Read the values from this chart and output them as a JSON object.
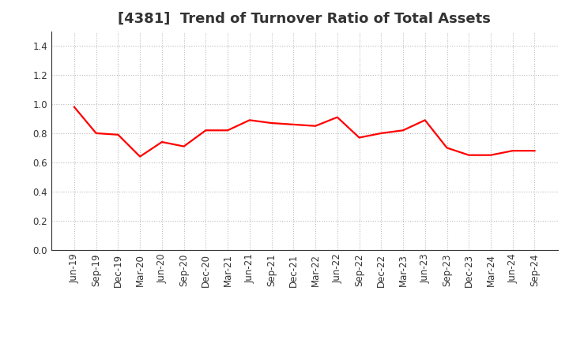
{
  "title": "[4381]  Trend of Turnover Ratio of Total Assets",
  "line_color": "#FF0000",
  "background_color": "#FFFFFF",
  "grid_color": "#BBBBBB",
  "labels": [
    "Jun-19",
    "Sep-19",
    "Dec-19",
    "Mar-20",
    "Jun-20",
    "Sep-20",
    "Dec-20",
    "Mar-21",
    "Jun-21",
    "Sep-21",
    "Dec-21",
    "Mar-22",
    "Jun-22",
    "Sep-22",
    "Dec-22",
    "Mar-23",
    "Jun-23",
    "Sep-23",
    "Dec-23",
    "Mar-24",
    "Jun-24",
    "Sep-24"
  ],
  "values": [
    0.98,
    0.8,
    0.79,
    0.64,
    0.74,
    0.71,
    0.82,
    0.82,
    0.89,
    0.87,
    0.86,
    0.85,
    0.91,
    0.77,
    0.8,
    0.82,
    0.89,
    0.7,
    0.65,
    0.65,
    0.68,
    0.68
  ],
  "ylim": [
    0.0,
    1.5
  ],
  "yticks": [
    0.0,
    0.2,
    0.4,
    0.6,
    0.8,
    1.0,
    1.2,
    1.4
  ],
  "title_fontsize": 13,
  "tick_fontsize": 8.5,
  "line_width": 1.6
}
